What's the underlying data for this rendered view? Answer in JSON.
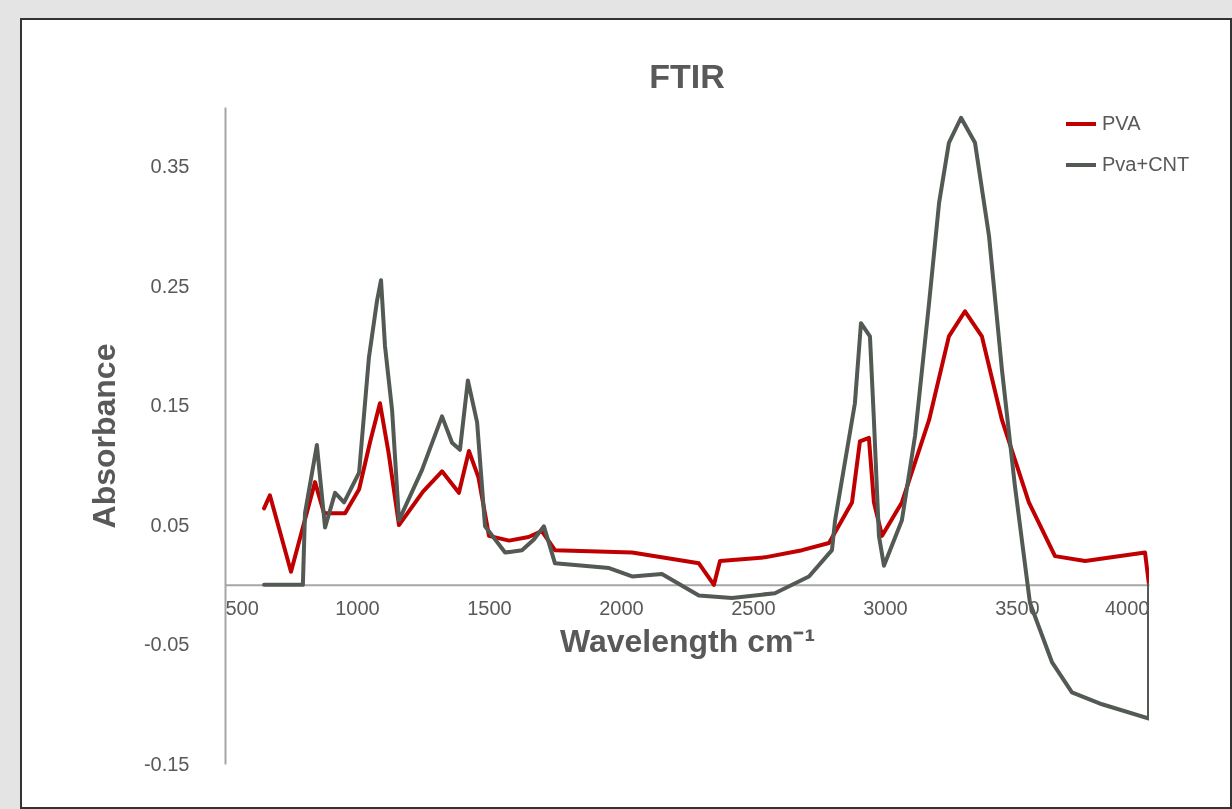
{
  "chart_data": {
    "type": "line",
    "title": "FTIR",
    "xlabel": "Wavelength cm⁻¹",
    "ylabel": "Absorbance",
    "xlim": [
      500,
      4000
    ],
    "xticks": [
      500,
      1000,
      1500,
      2000,
      2500,
      3000,
      3500,
      4000
    ],
    "ylim": [
      -0.15,
      0.4
    ],
    "yticks": [
      -0.15,
      -0.05,
      0.05,
      0.15,
      0.25,
      0.35
    ],
    "grid": false,
    "legend": "right",
    "line_style": "solid",
    "marker": "none",
    "series": [
      {
        "name": "PVA",
        "color": "#c00000",
        "x": [
          648,
          670,
          750,
          841,
          875,
          955,
          1008,
          1050,
          1087,
          1120,
          1159,
          1250,
          1322,
          1386,
          1424,
          1460,
          1500,
          1576,
          1650,
          1700,
          1750,
          2042,
          2295,
          2352,
          2375,
          2545,
          2686,
          2788,
          2875,
          2905,
          2939,
          2958,
          2989,
          3064,
          3167,
          3242,
          3303,
          3367,
          3443,
          3545,
          3644,
          3758,
          3985,
          4000
        ],
        "values": [
          0.064,
          0.075,
          0.011,
          0.086,
          0.06,
          0.06,
          0.08,
          0.12,
          0.152,
          0.11,
          0.05,
          0.078,
          0.095,
          0.077,
          0.112,
          0.09,
          0.041,
          0.037,
          0.04,
          0.045,
          0.029,
          0.027,
          0.018,
          0.0,
          0.02,
          0.023,
          0.029,
          0.035,
          0.069,
          0.12,
          0.123,
          0.069,
          0.041,
          0.069,
          0.138,
          0.208,
          0.229,
          0.208,
          0.138,
          0.069,
          0.024,
          0.02,
          0.027,
          0.0
        ]
      },
      {
        "name": "Pva+CNT",
        "color": "#535953",
        "x": [
          648,
          795,
          803,
          848,
          879,
          917,
          951,
          1008,
          1045,
          1076,
          1091,
          1106,
          1133,
          1159,
          1246,
          1322,
          1360,
          1390,
          1420,
          1455,
          1485,
          1561,
          1625,
          1670,
          1708,
          1750,
          1955,
          2042,
          2155,
          2295,
          2420,
          2583,
          2712,
          2799,
          2811,
          2886,
          2909,
          2943,
          2958,
          2977,
          2996,
          3064,
          3114,
          3167,
          3205,
          3242,
          3288,
          3341,
          3394,
          3443,
          3492,
          3549,
          3633,
          3708,
          3822,
          4000,
          4000
        ],
        "values": [
          0.0,
          0.0,
          0.06,
          0.117,
          0.048,
          0.077,
          0.069,
          0.094,
          0.19,
          0.238,
          0.255,
          0.2,
          0.146,
          0.054,
          0.096,
          0.141,
          0.119,
          0.113,
          0.171,
          0.136,
          0.049,
          0.027,
          0.029,
          0.038,
          0.049,
          0.018,
          0.014,
          0.007,
          0.009,
          -0.009,
          -0.011,
          -0.007,
          0.007,
          0.029,
          0.054,
          0.152,
          0.219,
          0.208,
          0.138,
          0.041,
          0.016,
          0.054,
          0.125,
          0.236,
          0.32,
          0.37,
          0.391,
          0.37,
          0.292,
          0.18,
          0.083,
          -0.015,
          -0.065,
          -0.09,
          -0.1,
          -0.112,
          0.0
        ]
      }
    ]
  }
}
